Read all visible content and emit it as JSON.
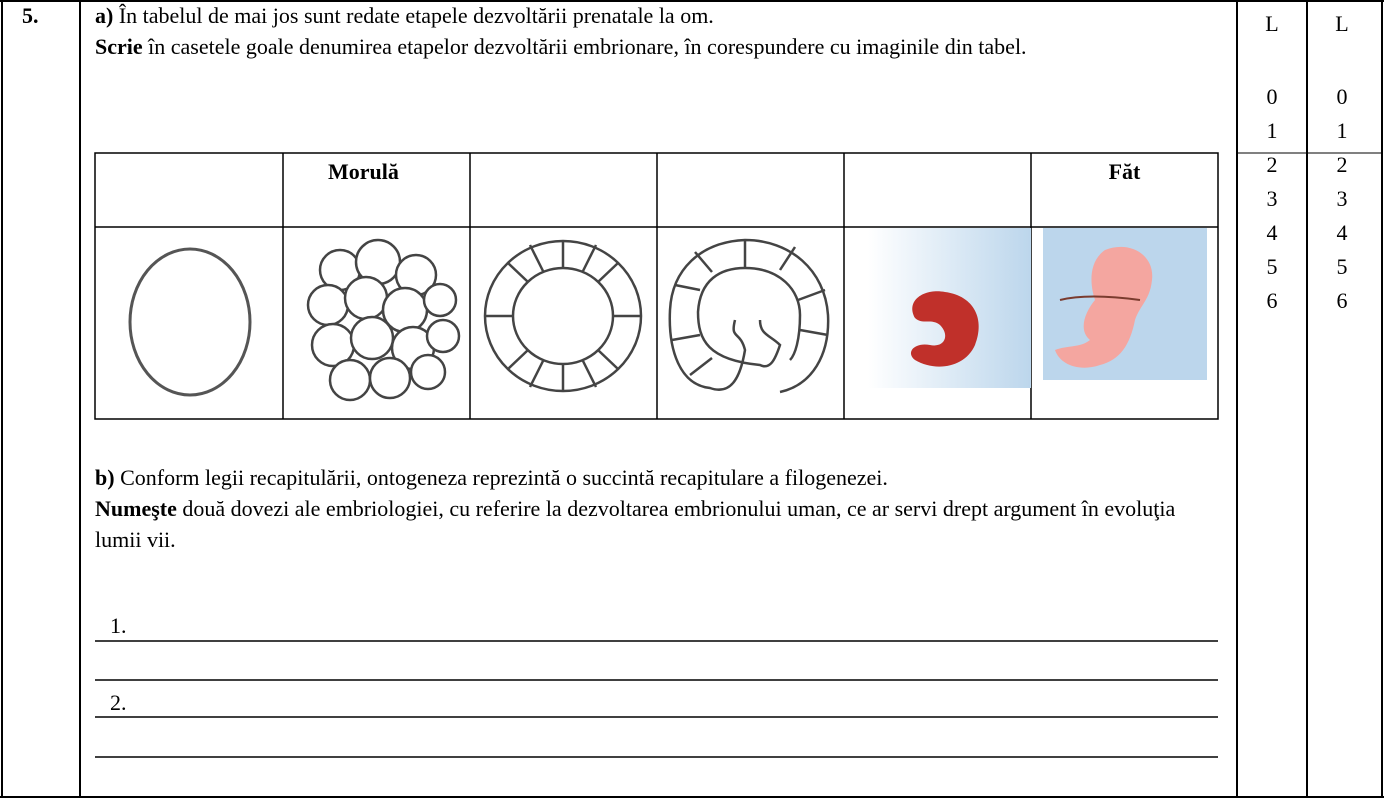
{
  "question": {
    "number": "5.",
    "part_a": {
      "label": "a)",
      "intro": "În tabelul de mai jos sunt redate etapele dezvoltării prenatale la om.",
      "instruction_verb": "Scrie",
      "instruction": "în casetele goale denumirea etapelor dezvoltării embrionare, în corespundere cu imaginile din tabel.",
      "table": {
        "morula": "Morulă",
        "fat": "Făt"
      }
    },
    "part_b": {
      "label": "b)",
      "statement": "Conform legii recapitulării, ontogeneza reprezintă o succintă recapitulare a filogenezei.",
      "instruction_verb": "Numeşte",
      "instruction": "două dovezi ale embriologiei, cu referire la dezvoltarea embrionului uman, ce ar servi drept argument în evoluţia lumii vii.",
      "answer_lines": [
        "1.",
        "2."
      ]
    }
  },
  "score_columns": [
    {
      "header": "L",
      "points": [
        0,
        1,
        2,
        3,
        4,
        5,
        6
      ]
    },
    {
      "header": "L",
      "points": [
        0,
        1,
        2,
        3,
        4,
        5,
        6
      ]
    }
  ]
}
